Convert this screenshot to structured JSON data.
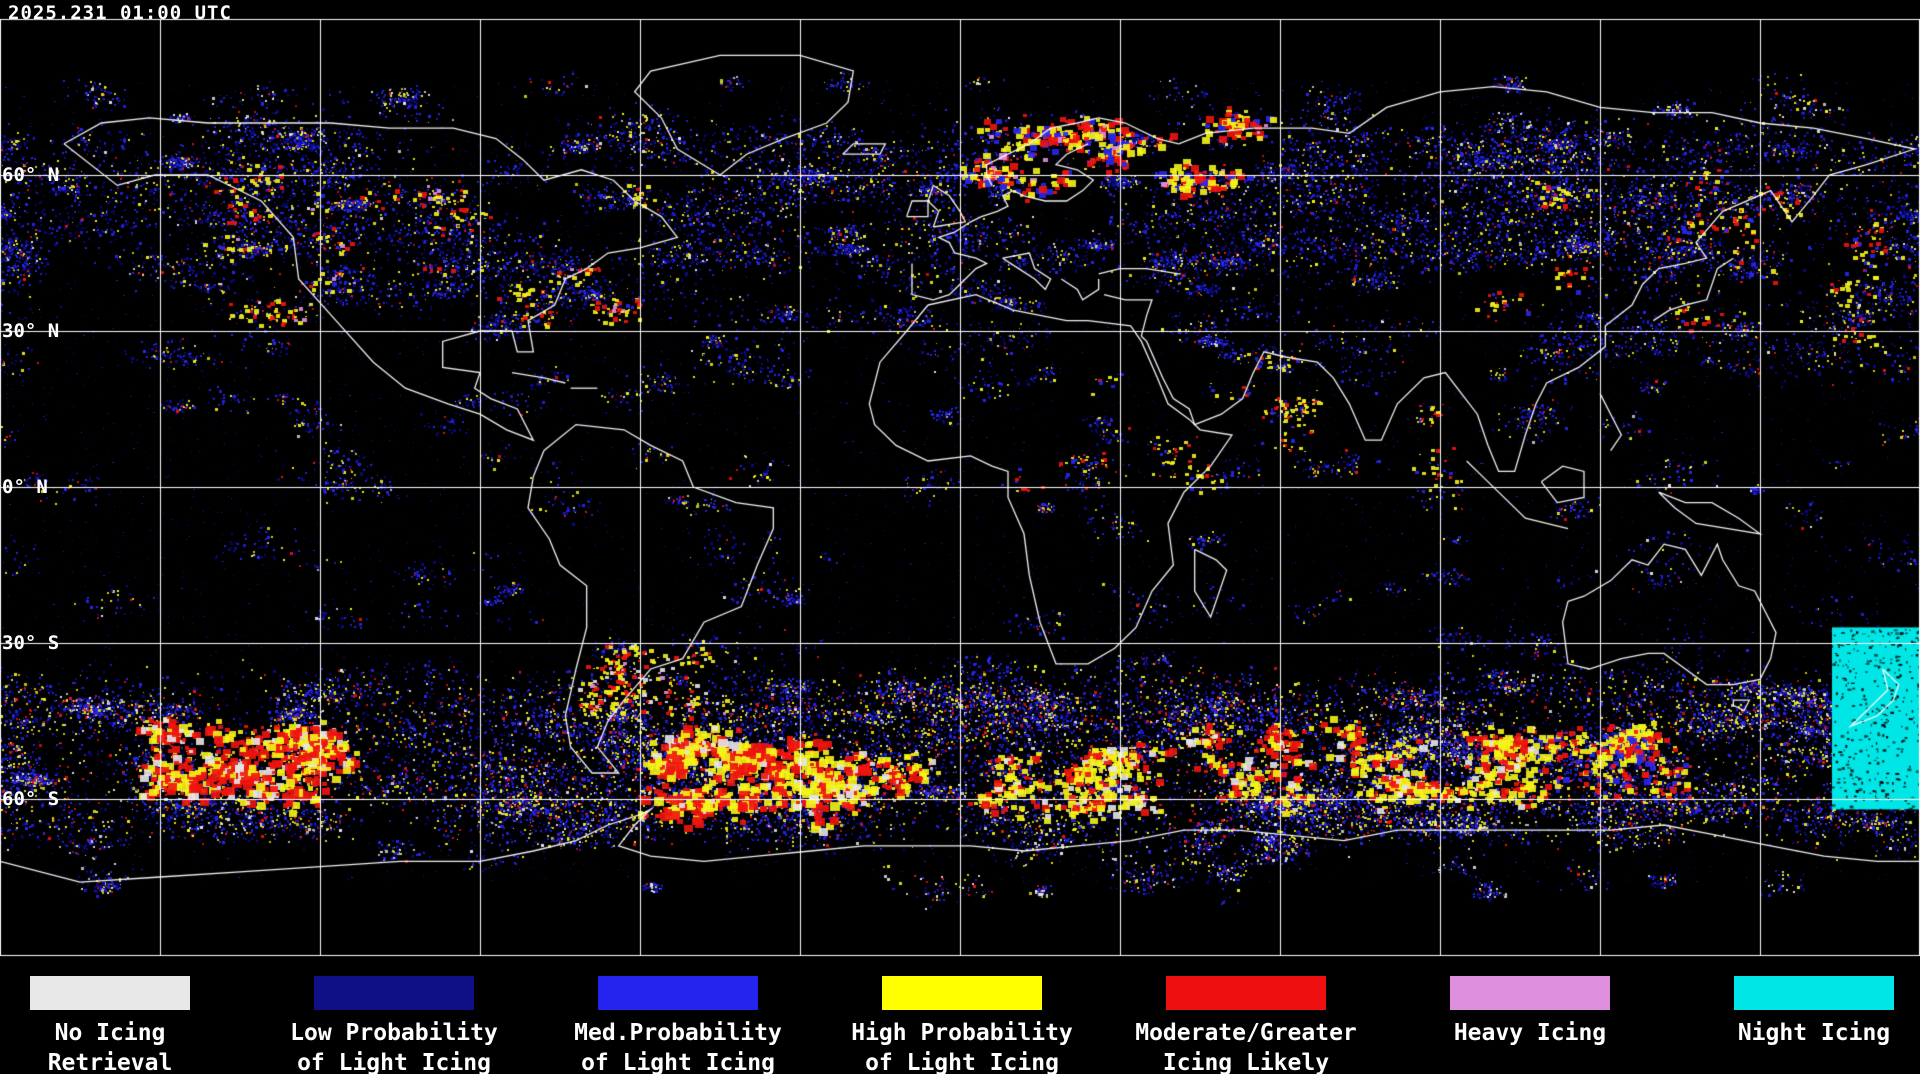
{
  "header": {
    "timestamp": "2025.231 01:00 UTC"
  },
  "map": {
    "latitude_labels": [
      "60° N",
      "30° N",
      "0° N",
      "30° S",
      "60° S"
    ],
    "background": "#000000",
    "grid_color": "#ffffff",
    "coastline_color": "#ffffff"
  },
  "legend": {
    "items": [
      {
        "color": "#e8e8e8",
        "line1": "No Icing",
        "line2": "Retrieval"
      },
      {
        "color": "#0f0f86",
        "line1": "Low Probability",
        "line2": "of Light Icing"
      },
      {
        "color": "#2424ee",
        "line1": "Med.Probability",
        "line2": "of Light Icing"
      },
      {
        "color": "#ffff00",
        "line1": "High Probability",
        "line2": "of Light Icing"
      },
      {
        "color": "#ee1010",
        "line1": "Moderate/Greater",
        "line2": "Icing Likely"
      },
      {
        "color": "#dd8fdd",
        "line1": "Heavy Icing",
        "line2": ""
      },
      {
        "color": "#00e6e6",
        "line1": "Night Icing",
        "line2": ""
      }
    ]
  },
  "map_texture": {
    "palette_colors": {
      "navy": "#0b0b8e",
      "blue": "#2727f0",
      "yellow": "#f4f418",
      "red": "#f01510",
      "white": "#e6e6e6",
      "pink": "#e090e0",
      "cyan": "#00e6e6"
    },
    "ambient_count": 9000,
    "bands": [
      {
        "lat": [
          66,
          79
        ],
        "clusters": 45,
        "pts": [
          10,
          60
        ],
        "r": [
          6,
          30
        ],
        "stretch": 2.0,
        "palette": {
          "navy": 0.3,
          "blue": 0.4,
          "yellow": 0.14,
          "red": 0.04,
          "white": 0.12
        }
      },
      {
        "lat": [
          42,
          68
        ],
        "clusters": 150,
        "pts": [
          20,
          140
        ],
        "r": [
          8,
          50
        ],
        "stretch": 2.2,
        "palette": {
          "navy": 0.42,
          "blue": 0.38,
          "yellow": 0.12,
          "red": 0.04,
          "white": 0.04
        }
      },
      {
        "lat": [
          22,
          45
        ],
        "clusters": 85,
        "pts": [
          10,
          80
        ],
        "r": [
          6,
          40
        ],
        "stretch": 2.0,
        "palette": {
          "navy": 0.45,
          "blue": 0.36,
          "yellow": 0.13,
          "red": 0.03,
          "white": 0.03
        }
      },
      {
        "lat": [
          -8,
          22
        ],
        "clusters": 60,
        "pts": [
          8,
          50
        ],
        "r": [
          5,
          28
        ],
        "stretch": 1.6,
        "palette": {
          "navy": 0.4,
          "blue": 0.36,
          "yellow": 0.17,
          "red": 0.05,
          "white": 0.02
        }
      },
      {
        "lat": [
          -38,
          -10
        ],
        "clusters": 50,
        "pts": [
          8,
          60
        ],
        "r": [
          6,
          34
        ],
        "stretch": 1.8,
        "palette": {
          "navy": 0.45,
          "blue": 0.4,
          "yellow": 0.1,
          "red": 0.03,
          "white": 0.02
        }
      },
      {
        "lat": [
          -66,
          -38
        ],
        "clusters": 230,
        "pts": [
          30,
          160
        ],
        "r": [
          10,
          55
        ],
        "stretch": 2.4,
        "palette": {
          "navy": 0.3,
          "blue": 0.38,
          "yellow": 0.17,
          "red": 0.08,
          "white": 0.07
        }
      },
      {
        "lat": [
          -78,
          -66
        ],
        "clusters": 40,
        "pts": [
          10,
          60
        ],
        "r": [
          6,
          28
        ],
        "stretch": 1.6,
        "palette": {
          "navy": 0.34,
          "blue": 0.34,
          "yellow": 0.1,
          "red": 0.06,
          "white": 0.16
        }
      }
    ],
    "hotspots": [
      {
        "lon": [
          0,
          60
        ],
        "lat": [
          58,
          71
        ],
        "blobs": 30,
        "size": [
          3,
          9
        ],
        "palette": {
          "red": 0.42,
          "yellow": 0.4,
          "pink": 0.05,
          "blue": 0.13
        }
      },
      {
        "lon": [
          -140,
          -60
        ],
        "lat": [
          32,
          62
        ],
        "blobs": 22,
        "size": [
          2,
          6
        ],
        "palette": {
          "yellow": 0.5,
          "red": 0.3,
          "pink": 0.06,
          "blue": 0.14
        }
      },
      {
        "lon": [
          100,
          175
        ],
        "lat": [
          30,
          60
        ],
        "blobs": 20,
        "size": [
          2,
          6
        ],
        "palette": {
          "yellow": 0.45,
          "red": 0.35,
          "blue": 0.2
        }
      },
      {
        "lon": [
          0,
          95
        ],
        "lat": [
          0,
          25
        ],
        "blobs": 16,
        "size": [
          2,
          5
        ],
        "palette": {
          "yellow": 0.55,
          "red": 0.25,
          "blue": 0.2
        }
      },
      {
        "lon": [
          -70,
          -45
        ],
        "lat": [
          -42,
          -28
        ],
        "blobs": 14,
        "size": [
          2,
          6
        ],
        "palette": {
          "yellow": 0.5,
          "red": 0.3,
          "pink": 0.08,
          "white": 0.12
        }
      },
      {
        "lon": [
          -150,
          -118
        ],
        "lat": [
          -60,
          -46
        ],
        "blobs": 40,
        "size": [
          4,
          10
        ],
        "palette": {
          "red": 0.55,
          "yellow": 0.3,
          "white": 0.15
        }
      },
      {
        "lon": [
          -58,
          -24
        ],
        "lat": [
          -64,
          -48
        ],
        "blobs": 38,
        "size": [
          4,
          11
        ],
        "palette": {
          "red": 0.5,
          "yellow": 0.4,
          "white": 0.1
        }
      },
      {
        "lon": [
          -20,
          35
        ],
        "lat": [
          -62,
          -50
        ],
        "blobs": 32,
        "size": [
          3,
          9
        ],
        "palette": {
          "yellow": 0.5,
          "red": 0.35,
          "white": 0.15
        }
      },
      {
        "lon": [
          45,
          110
        ],
        "lat": [
          -60,
          -46
        ],
        "blobs": 36,
        "size": [
          3,
          9
        ],
        "palette": {
          "yellow": 0.5,
          "red": 0.38,
          "white": 0.12
        }
      },
      {
        "lon": [
          112,
          135
        ],
        "lat": [
          -58,
          -46
        ],
        "blobs": 18,
        "size": [
          3,
          8
        ],
        "palette": {
          "yellow": 0.5,
          "red": 0.3,
          "blue": 0.2
        }
      }
    ],
    "night_zone": {
      "x": [
        1832,
        1920
      ],
      "lat": [
        -27,
        -62
      ]
    }
  }
}
